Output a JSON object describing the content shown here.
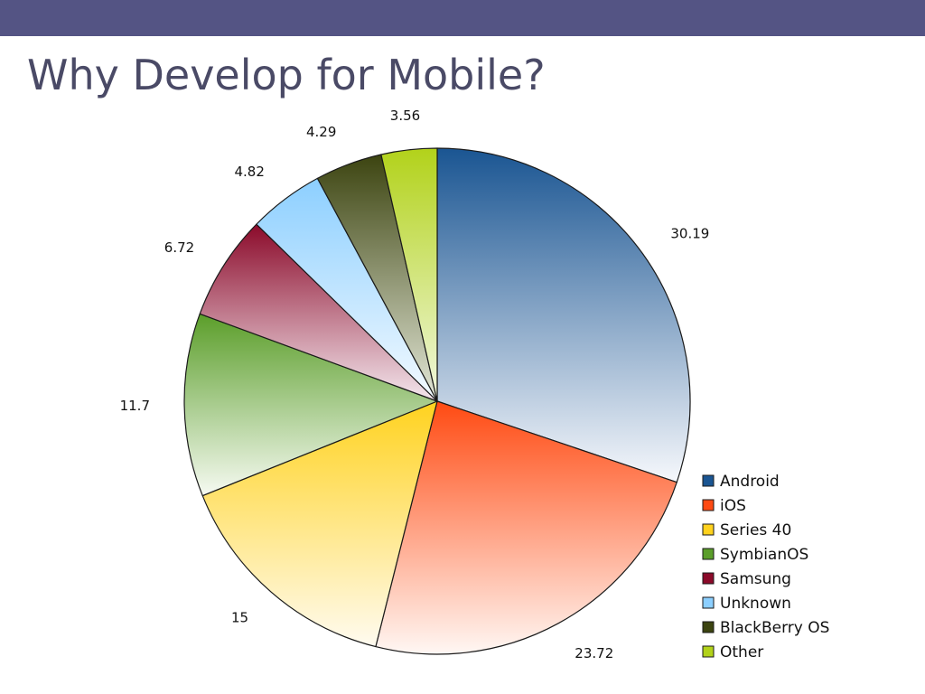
{
  "slide": {
    "title": "Why Develop for Mobile?"
  },
  "colors": {
    "top_bar": "#545484",
    "title_text": "#4a4a66"
  },
  "chart_data": {
    "type": "pie",
    "title": "",
    "data_labels_shown": true,
    "start_angle_deg": 0,
    "direction": "clockwise",
    "gradient_fill": "vertical, dark at top to light at bottom",
    "legend_placement": "bottom-right",
    "slices": [
      {
        "name": "Android",
        "value": 30.19,
        "label": "30.19",
        "color": "#1a5592",
        "light": "#f6f8fc"
      },
      {
        "name": "iOS",
        "value": 23.72,
        "label": "23.72",
        "color": "#ff4a12",
        "light": "#fff6f2"
      },
      {
        "name": "Series 40",
        "value": 15,
        "label": "15",
        "color": "#ffd21e",
        "light": "#fffbf0"
      },
      {
        "name": "SymbianOS",
        "value": 11.7,
        "label": "11.7",
        "color": "#5b9e2a",
        "light": "#f6faf2"
      },
      {
        "name": "Samsung",
        "value": 6.72,
        "label": "6.72",
        "color": "#8b0a2a",
        "light": "#f4e8ee"
      },
      {
        "name": "Unknown",
        "value": 4.82,
        "label": "4.82",
        "color": "#8ccfff",
        "light": "#f4faff"
      },
      {
        "name": "BlackBerry OS",
        "value": 4.29,
        "label": "4.29",
        "color": "#3c4410",
        "light": "#e4e8d8"
      },
      {
        "name": "Other",
        "value": 3.56,
        "label": "3.56",
        "color": "#b2d21a",
        "light": "#f2f8e0"
      }
    ]
  }
}
